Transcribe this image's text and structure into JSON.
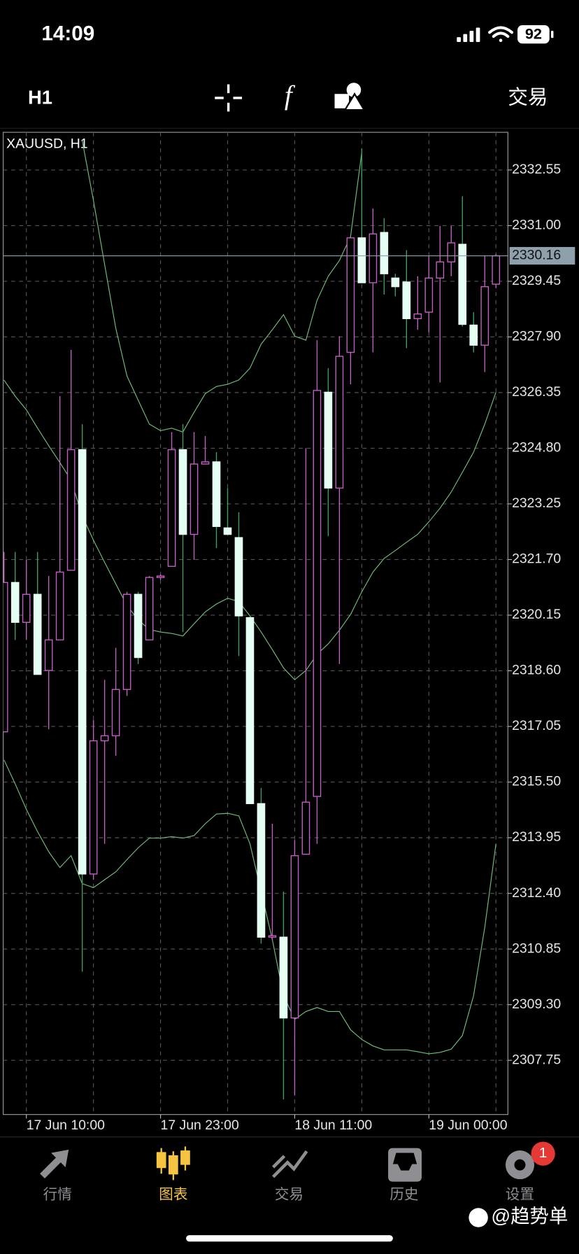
{
  "status_bar": {
    "time": "14:09",
    "battery": "92"
  },
  "toolbar": {
    "timeframe": "H1",
    "trade": "交易"
  },
  "chart_data": {
    "type": "candlestick",
    "title": "XAUUSD, H1",
    "categories": [
      null,
      null,
      "17 Jun 10:00",
      null,
      null,
      null,
      null,
      null,
      null,
      null,
      null,
      null,
      null,
      null,
      "17 Jun 23:00",
      null,
      null,
      null,
      null,
      null,
      null,
      null,
      null,
      null,
      null,
      null,
      "18 Jun 11:00",
      null,
      null,
      null,
      null,
      null,
      null,
      null,
      null,
      null,
      null,
      null,
      "19 Jun 00:00",
      null,
      null,
      null,
      null,
      null,
      null
    ],
    "open": [
      2316.9,
      2321.06,
      2319.95,
      2320.73,
      2318.61,
      2319.46,
      2321.4,
      2324.76,
      2312.94,
      2316.65,
      2316.79,
      2318.08,
      2320.73,
      2319.46,
      2321.2,
      2321.51,
      2324.76,
      2322.4,
      2324.36,
      2324.42,
      2322.58,
      2322.31,
      2320.08,
      2314.9,
      2311.18,
      2311.18,
      2308.93,
      2313.49,
      2315.1,
      2326.36,
      2323.69,
      2327.47,
      2330.66,
      2329.41,
      2330.81,
      2329.54,
      2329.43,
      2328.41,
      2328.59,
      2329.54,
      2329.99,
      2330.48,
      2328.23,
      2327.67,
      2329.37
    ],
    "high": [
      2321.91,
      2321.91,
      2321.69,
      2321.91,
      2321.24,
      2326.25,
      2327.54,
      2325.47,
      2317.23,
      2318.35,
      2319.24,
      2320.8,
      2320.8,
      2321.24,
      2321.29,
      2325.25,
      2325.47,
      2325.25,
      2325.14,
      2324.69,
      2323.69,
      2323.02,
      2320.13,
      2315.34,
      2314.34,
      2312.45,
      2313.89,
      2324.8,
      2327.81,
      2327.03,
      2327.92,
      2330.7,
      2333.15,
      2331.48,
      2331.21,
      2329.66,
      2330.32,
      2329.59,
      2330.15,
      2330.99,
      2330.99,
      2331.82,
      2328.59,
      2330.15,
      2330.21
    ],
    "low": [
      2316.9,
      2319.46,
      2319.46,
      2318.5,
      2316.97,
      2319.46,
      2321.4,
      2310.22,
      2312.78,
      2313.78,
      2316.23,
      2317.9,
      2318.79,
      2319.46,
      2321.13,
      2321.51,
      2319.68,
      2321.69,
      2324.36,
      2322.02,
      2322.4,
      2319.01,
      2314.9,
      2311.0,
      2311.11,
      2306.66,
      2306.77,
      2313.49,
      2313.78,
      2322.35,
      2318.79,
      2326.58,
      2329.41,
      2327.47,
      2329.08,
      2329.03,
      2327.59,
      2328.1,
      2328.03,
      2326.63,
      2329.59,
      2328.19,
      2327.47,
      2326.92,
      2329.26
    ],
    "close": [
      2321.06,
      2319.95,
      2320.73,
      2318.5,
      2319.46,
      2321.35,
      2324.76,
      2312.94,
      2316.65,
      2316.79,
      2318.08,
      2320.73,
      2318.97,
      2321.2,
      2321.24,
      2324.76,
      2322.4,
      2324.36,
      2324.42,
      2322.62,
      2322.4,
      2320.13,
      2314.9,
      2311.18,
      2311.22,
      2308.93,
      2313.45,
      2314.94,
      2326.41,
      2323.69,
      2327.36,
      2330.66,
      2329.41,
      2330.77,
      2329.66,
      2329.3,
      2328.41,
      2328.54,
      2329.54,
      2329.99,
      2330.52,
      2328.25,
      2327.67,
      2329.3,
      2330.16
    ],
    "up_color": "#c45fc4",
    "down_color": "#e6fff4",
    "down_wick_color": "#3fa060",
    "lines": [
      {
        "color": "#6fbf7a",
        "values": [
          null,
          null,
          null,
          null,
          null,
          null,
          null,
          2333.37,
          2331.7,
          2329.92,
          2328.14,
          2326.81,
          2326.14,
          2325.47,
          2325.29,
          2325.36,
          2325.25,
          2325.8,
          2326.32,
          2326.52,
          2326.58,
          2326.7,
          2327.03,
          2327.7,
          2328.1,
          2328.52,
          2327.92,
          2327.81,
          2328.92,
          2329.59,
          2330.03,
          2330.7,
          2333.04,
          null,
          null,
          null,
          null,
          null,
          null,
          null,
          null,
          null,
          null,
          null,
          null
        ]
      },
      {
        "color": "#6fbf7a",
        "values": [
          2326.7,
          2326.25,
          2325.87,
          2325.36,
          2324.87,
          2324.4,
          2323.91,
          2322.91,
          2322.24,
          2321.62,
          2321.02,
          2320.42,
          2320.02,
          2319.75,
          2319.68,
          2319.64,
          2319.57,
          2319.91,
          2320.24,
          2320.46,
          2320.62,
          2320.53,
          2320.13,
          2319.68,
          2319.19,
          2318.68,
          2318.35,
          2318.61,
          2319.06,
          2319.35,
          2319.73,
          2320.17,
          2320.8,
          2321.35,
          2321.73,
          2321.95,
          2322.18,
          2322.4,
          2322.75,
          2323.13,
          2323.58,
          2324.13,
          2324.69,
          2325.47,
          2326.36
        ]
      },
      {
        "color": "#6fbf7a",
        "values": [
          2316.12,
          2315.45,
          2314.74,
          2314.12,
          2313.56,
          2313.12,
          2313.45,
          2312.67,
          2312.56,
          2312.78,
          2313.0,
          2313.34,
          2313.67,
          2313.94,
          2313.94,
          2313.98,
          2313.94,
          2314.01,
          2314.34,
          2314.61,
          2314.63,
          2314.56,
          2313.78,
          2312.45,
          2311.11,
          2309.55,
          2308.89,
          2309.11,
          2309.22,
          2309.11,
          2309.11,
          2308.6,
          2308.33,
          2308.15,
          2308.04,
          2308.04,
          2308.04,
          2307.99,
          2307.93,
          2307.97,
          2308.06,
          2308.44,
          2309.55,
          2311.45,
          2313.78
        ]
      }
    ],
    "current_price": 2330.16,
    "current_price_color": "#8fa0ad",
    "ylim": [
      2306.24,
      2333.6
    ],
    "yticks": [
      2332.55,
      {
        "value": 2331,
        "label": "2331.00"
      },
      2329.45,
      {
        "value": 2327.9,
        "label": "2327.90"
      },
      2326.35,
      {
        "value": 2324.8,
        "label": "2324.80"
      },
      2323.25,
      {
        "value": 2321.7,
        "label": "2321.70"
      },
      2320.15,
      {
        "value": 2318.6,
        "label": "2318.60"
      },
      2317.05,
      {
        "value": 2315.5,
        "label": "2315.50"
      },
      2313.95,
      {
        "value": 2312.4,
        "label": "2312.40"
      },
      2310.85,
      {
        "value": 2309.3,
        "label": "2309.30"
      },
      2307.75
    ],
    "grid": true
  },
  "tab_bar": {
    "tabs": [
      "行情",
      "图表",
      "交易",
      "历史",
      "设置"
    ],
    "active": 1,
    "badge": "1"
  },
  "watermark": "@趋势单"
}
